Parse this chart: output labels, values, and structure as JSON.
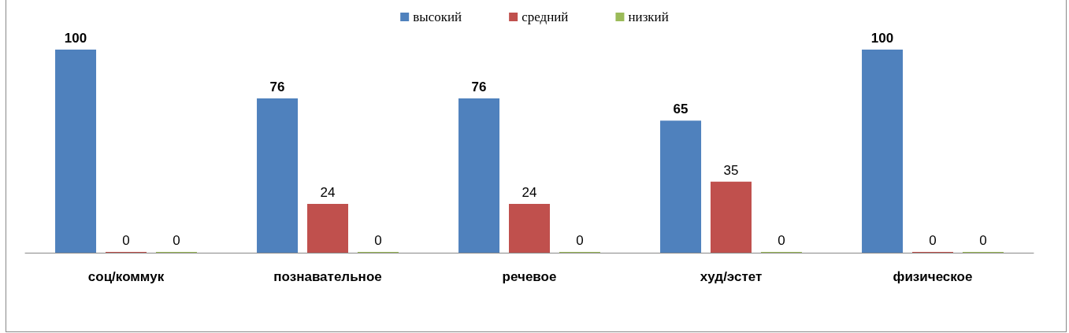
{
  "chart_data": {
    "type": "bar",
    "categories": [
      "соц/коммук",
      "познавательное",
      "речевое",
      "худ/эстет",
      "физическое"
    ],
    "series": [
      {
        "name": "высокий",
        "color": "#4f81bd",
        "values": [
          100,
          76,
          76,
          65,
          100
        ]
      },
      {
        "name": "средний",
        "color": "#c0504d",
        "values": [
          0,
          24,
          24,
          35,
          0
        ]
      },
      {
        "name": "низкий",
        "color": "#9bbb59",
        "values": [
          0,
          0,
          0,
          0,
          0
        ]
      }
    ],
    "data_labels": true,
    "legend": "top"
  }
}
